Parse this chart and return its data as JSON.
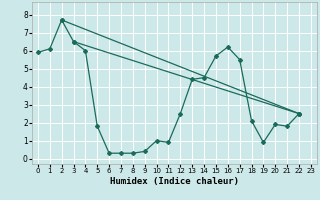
{
  "xlabel": "Humidex (Indice chaleur)",
  "bg_color": "#cde8e8",
  "line_color": "#1a6b5a",
  "grid_color": "#ffffff",
  "xlim": [
    -0.5,
    23.5
  ],
  "ylim": [
    -0.3,
    8.7
  ],
  "xticks": [
    0,
    1,
    2,
    3,
    4,
    5,
    6,
    7,
    8,
    9,
    10,
    11,
    12,
    13,
    14,
    15,
    16,
    17,
    18,
    19,
    20,
    21,
    22,
    23
  ],
  "yticks": [
    0,
    1,
    2,
    3,
    4,
    5,
    6,
    7,
    8
  ],
  "line1_x": [
    0,
    1,
    2,
    3,
    4,
    5,
    6,
    7,
    8,
    9,
    10,
    11,
    12,
    13,
    14,
    15,
    16,
    17,
    18,
    19,
    20,
    21,
    22
  ],
  "line1_y": [
    5.9,
    6.1,
    7.7,
    6.5,
    6.0,
    1.8,
    0.3,
    0.3,
    0.3,
    0.4,
    1.0,
    0.9,
    2.5,
    4.4,
    4.5,
    5.7,
    6.2,
    5.5,
    2.1,
    0.9,
    1.9,
    1.8,
    2.5
  ],
  "line2_x": [
    2,
    22
  ],
  "line2_y": [
    7.7,
    2.5
  ],
  "line3_x": [
    3,
    22
  ],
  "line3_y": [
    6.5,
    2.5
  ],
  "xlabel_fontsize": 6.5,
  "tick_fontsize_x": 5.0,
  "tick_fontsize_y": 5.5
}
